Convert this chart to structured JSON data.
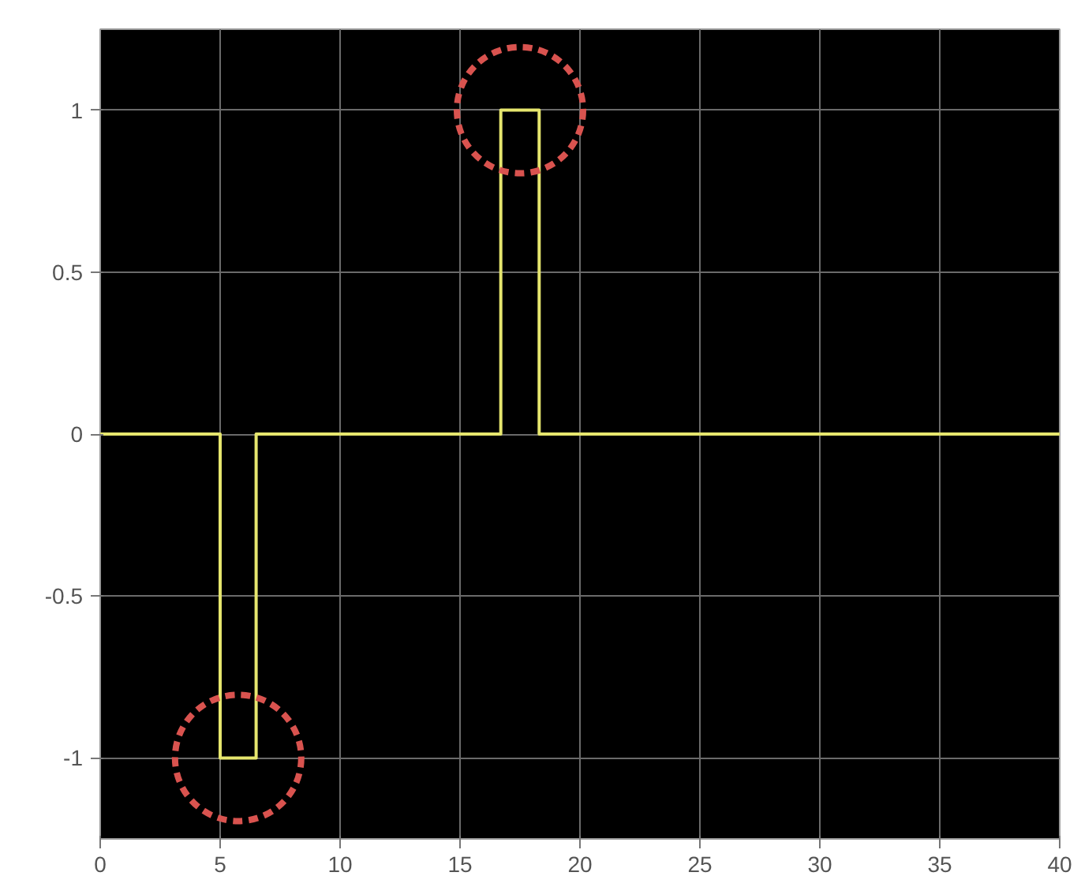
{
  "chart_data": {
    "type": "step",
    "x": [
      0,
      5,
      6.5,
      16.7,
      18.3,
      40
    ],
    "series": [
      {
        "color": "#e6e66e",
        "values": [
          0,
          -1,
          0,
          1,
          0,
          0
        ]
      }
    ],
    "xlim": [
      0,
      40
    ],
    "xticks": [
      0,
      5,
      10,
      15,
      20,
      25,
      30,
      35,
      40
    ],
    "ylim": [
      -1.25,
      1.25
    ],
    "yticks": [
      -1,
      -0.5,
      0,
      0.5,
      1
    ],
    "grid": true,
    "marker": "none",
    "line_style": "solid"
  }
}
